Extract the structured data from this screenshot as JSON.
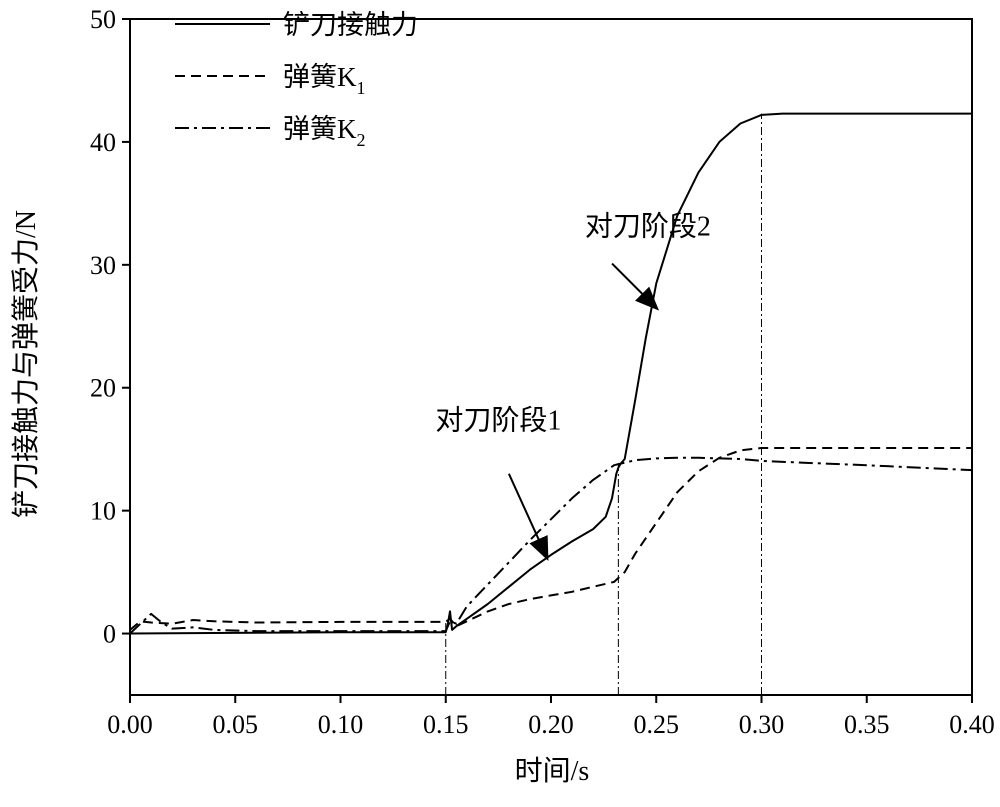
{
  "chart_data": {
    "type": "line",
    "title": "",
    "xlabel": "时间/s",
    "ylabel": "铲刀接触力与弹簧受力/N",
    "xlim": [
      0.0,
      0.4
    ],
    "ylim": [
      -5,
      50
    ],
    "xticks": [
      "0.00",
      "0.05",
      "0.10",
      "0.15",
      "0.20",
      "0.25",
      "0.30",
      "0.35",
      "0.40"
    ],
    "yticks": [
      "0",
      "10",
      "20",
      "30",
      "40",
      "50"
    ],
    "grid": false,
    "legend_position": "top-left",
    "series": [
      {
        "name": "铲刀接触力",
        "style": "solid",
        "points": [
          [
            0.0,
            0.0
          ],
          [
            0.1,
            0.1
          ],
          [
            0.15,
            0.1
          ],
          [
            0.151,
            0.8
          ],
          [
            0.152,
            1.8
          ],
          [
            0.153,
            0.3
          ],
          [
            0.155,
            0.6
          ],
          [
            0.16,
            1.2
          ],
          [
            0.17,
            2.4
          ],
          [
            0.18,
            3.8
          ],
          [
            0.19,
            5.2
          ],
          [
            0.2,
            6.4
          ],
          [
            0.21,
            7.5
          ],
          [
            0.22,
            8.5
          ],
          [
            0.226,
            9.5
          ],
          [
            0.229,
            11.0
          ],
          [
            0.231,
            13.0
          ],
          [
            0.232,
            13.5
          ],
          [
            0.233,
            13.8
          ],
          [
            0.235,
            14.2
          ],
          [
            0.24,
            19.0
          ],
          [
            0.245,
            24.0
          ],
          [
            0.25,
            28.5
          ],
          [
            0.26,
            34.0
          ],
          [
            0.27,
            37.5
          ],
          [
            0.28,
            40.0
          ],
          [
            0.29,
            41.5
          ],
          [
            0.3,
            42.2
          ],
          [
            0.31,
            42.3
          ],
          [
            0.4,
            42.3
          ]
        ]
      },
      {
        "name": "弹簧K1",
        "style": "dashed",
        "points": [
          [
            0.0,
            0.3
          ],
          [
            0.005,
            1.0
          ],
          [
            0.01,
            0.9
          ],
          [
            0.02,
            0.8
          ],
          [
            0.03,
            1.1
          ],
          [
            0.04,
            1.0
          ],
          [
            0.06,
            0.9
          ],
          [
            0.1,
            0.95
          ],
          [
            0.15,
            0.95
          ],
          [
            0.152,
            1.2
          ],
          [
            0.155,
            0.6
          ],
          [
            0.16,
            1.0
          ],
          [
            0.17,
            1.8
          ],
          [
            0.18,
            2.4
          ],
          [
            0.19,
            2.8
          ],
          [
            0.2,
            3.1
          ],
          [
            0.21,
            3.4
          ],
          [
            0.22,
            3.8
          ],
          [
            0.23,
            4.2
          ],
          [
            0.235,
            5.0
          ],
          [
            0.24,
            6.5
          ],
          [
            0.25,
            9.0
          ],
          [
            0.26,
            11.5
          ],
          [
            0.27,
            13.2
          ],
          [
            0.28,
            14.3
          ],
          [
            0.29,
            14.9
          ],
          [
            0.3,
            15.1
          ],
          [
            0.4,
            15.1
          ]
        ]
      },
      {
        "name": "弹簧K2",
        "style": "dash-dot",
        "points": [
          [
            0.0,
            0.0
          ],
          [
            0.005,
            0.8
          ],
          [
            0.01,
            1.6
          ],
          [
            0.015,
            0.9
          ],
          [
            0.02,
            0.4
          ],
          [
            0.03,
            0.5
          ],
          [
            0.04,
            0.3
          ],
          [
            0.06,
            0.2
          ],
          [
            0.1,
            0.2
          ],
          [
            0.15,
            0.2
          ],
          [
            0.152,
            1.0
          ],
          [
            0.155,
            0.8
          ],
          [
            0.16,
            2.2
          ],
          [
            0.17,
            4.0
          ],
          [
            0.18,
            5.8
          ],
          [
            0.19,
            7.6
          ],
          [
            0.2,
            9.3
          ],
          [
            0.21,
            11.0
          ],
          [
            0.22,
            12.5
          ],
          [
            0.23,
            13.7
          ],
          [
            0.24,
            14.1
          ],
          [
            0.25,
            14.25
          ],
          [
            0.26,
            14.3
          ],
          [
            0.27,
            14.3
          ],
          [
            0.28,
            14.25
          ],
          [
            0.29,
            14.2
          ],
          [
            0.3,
            14.05
          ],
          [
            0.32,
            13.9
          ],
          [
            0.35,
            13.7
          ],
          [
            0.38,
            13.45
          ],
          [
            0.4,
            13.3
          ]
        ]
      }
    ],
    "reference_lines_x": [
      0.15,
      0.232,
      0.3
    ],
    "annotations": [
      {
        "text": "对刀阶段1",
        "label_at": [
          0.175,
          16.6
        ],
        "arrow_to": [
          0.198,
          6.2
        ]
      },
      {
        "text": "对刀阶段2",
        "label_at": [
          0.246,
          32.4
        ],
        "arrow_to": [
          0.25,
          26.5
        ]
      }
    ]
  }
}
